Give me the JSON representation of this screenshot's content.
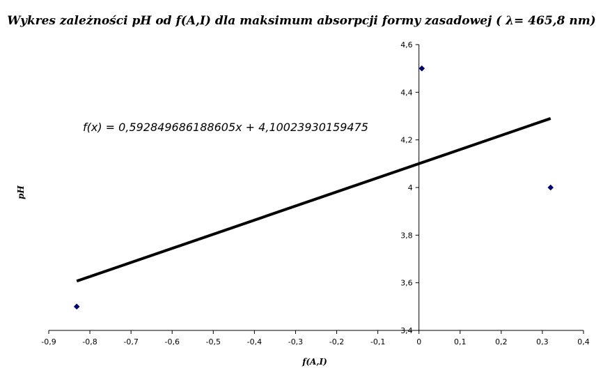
{
  "chart_data": {
    "type": "scatter",
    "title": "Wykres zależności pH od f(A,I) dla maksimum absorpcji formy zasadowej ( λ= 465,8 nm)",
    "xlabel": "f(A,I)",
    "ylabel": "pH",
    "xlim": [
      -0.9,
      0.4
    ],
    "ylim": [
      3.4,
      4.6
    ],
    "x_ticks": [
      "-0,9",
      "-0,8",
      "-0,7",
      "-0,6",
      "-0,5",
      "-0,4",
      "-0,3",
      "-0,2",
      "-0,1",
      "0",
      "0,1",
      "0,2",
      "0,3",
      "0,4"
    ],
    "y_ticks": [
      "3,4",
      "3,6",
      "3,8",
      "4",
      "4,2",
      "4,4",
      "4,6"
    ],
    "grid": false,
    "series": [
      {
        "points": [
          {
            "x": -0.832,
            "y": 3.5
          },
          {
            "x": 0.007,
            "y": 4.5
          },
          {
            "x": 0.32,
            "y": 4.0
          }
        ],
        "color": "#000080",
        "marker": "diamond"
      }
    ],
    "trendline": {
      "type": "linear",
      "slope": 0.592849686188605,
      "intercept": 4.10023930159475,
      "x_range": [
        -0.832,
        0.32
      ],
      "color": "#000000",
      "equation_label": "f(x) = 0,592849686188605x + 4,10023930159475"
    }
  }
}
